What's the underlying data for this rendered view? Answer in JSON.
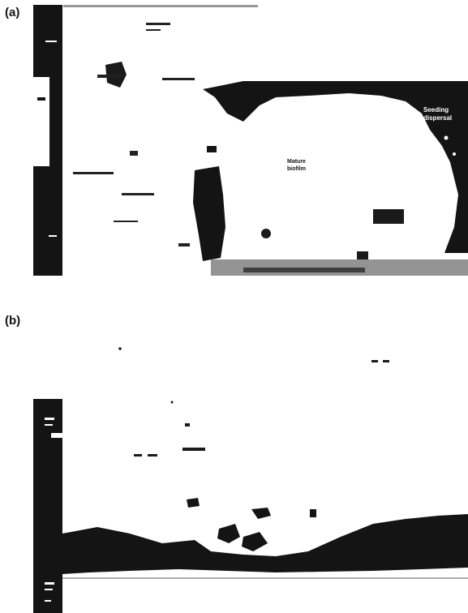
{
  "panels": [
    {
      "id": "a",
      "label": "(a)",
      "annotations": [
        {
          "text": "Seeding",
          "tone": "light"
        },
        {
          "text": "dispersal",
          "tone": "light"
        },
        {
          "text": "Mature",
          "tone": "dark"
        },
        {
          "text": "biofilm",
          "tone": "dark"
        }
      ]
    },
    {
      "id": "b",
      "label": "(b)",
      "annotations": []
    }
  ],
  "colors": {
    "background": "#ffffff",
    "ink": "#111111",
    "speckle": "#3a3a3a"
  }
}
